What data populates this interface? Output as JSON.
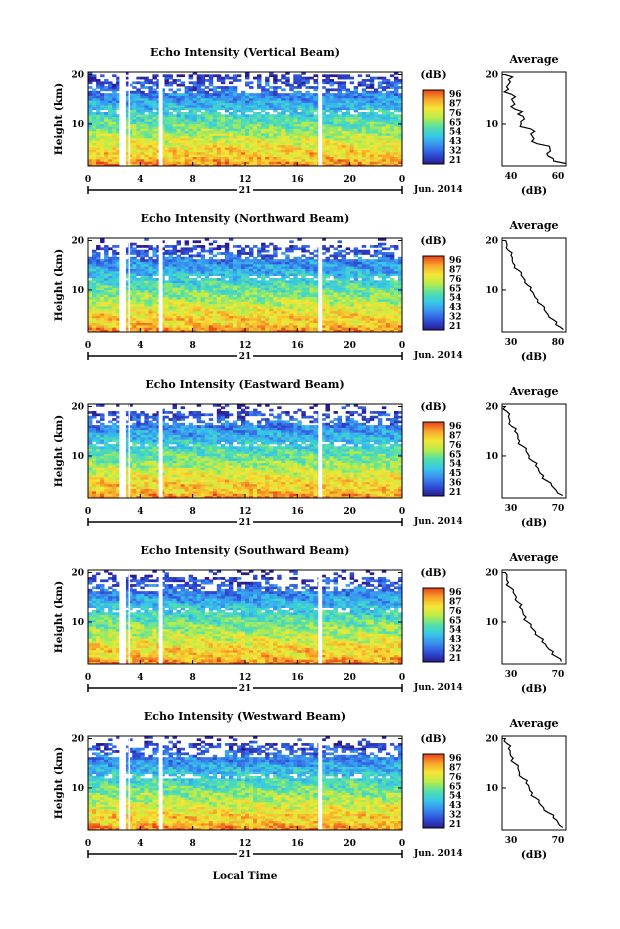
{
  "xlabel": "Local Time",
  "date_label": "Jun. 2014",
  "day_label": "21",
  "cbar_unit": "(dB)",
  "avg_title": "Average",
  "avg_xlabel": "(dB)",
  "ylabel": "Height (km)",
  "x_ticks": [
    "0",
    "4",
    "8",
    "12",
    "16",
    "20",
    "0"
  ],
  "y_ticks": [
    "20",
    "10"
  ],
  "colors": {
    "scale": [
      "#2a1a8f",
      "#2e4fd8",
      "#3a8df0",
      "#36c7e8",
      "#55e0a8",
      "#b8ec4a",
      "#f6e636",
      "#f7a52a",
      "#e8401c"
    ],
    "gap": "#ffffff"
  },
  "chart_data": [
    {
      "type": "heatmap",
      "title": "Echo Intensity (Vertical Beam)",
      "xlim": [
        0,
        24
      ],
      "ylim": [
        1.5,
        20.5
      ],
      "colorbar": {
        "unit": "(dB)",
        "ticks": [
          "96",
          "87",
          "76",
          "65",
          "54",
          "43",
          "32",
          "21"
        ]
      },
      "data_gaps_hours": [
        [
          2.4,
          2.9
        ],
        [
          3.1,
          3.2
        ],
        [
          5.4,
          5.7
        ],
        [
          17.6,
          17.9
        ]
      ],
      "average_profile": {
        "xlim": [
          40,
          60
        ],
        "xticks": [
          "40",
          "60"
        ],
        "height_km": [
          2,
          3,
          4,
          5,
          6,
          7,
          8,
          9,
          10,
          11,
          12,
          13,
          14,
          15,
          16,
          17,
          18,
          19,
          20
        ],
        "db": [
          60,
          56,
          54,
          55,
          51,
          50,
          49,
          49,
          46,
          47,
          45,
          44,
          44,
          43,
          43,
          42,
          42,
          42,
          41
        ]
      }
    },
    {
      "type": "heatmap",
      "title": "Echo Intensity (Northward Beam)",
      "xlim": [
        0,
        24
      ],
      "ylim": [
        1.5,
        20.5
      ],
      "colorbar": {
        "unit": "(dB)",
        "ticks": [
          "96",
          "87",
          "76",
          "65",
          "54",
          "43",
          "32",
          "21"
        ]
      },
      "data_gaps_hours": [
        [
          2.4,
          2.9
        ],
        [
          3.1,
          3.2
        ],
        [
          5.4,
          5.7
        ],
        [
          17.6,
          17.9
        ]
      ],
      "average_profile": {
        "xlim": [
          30,
          80
        ],
        "xticks": [
          "30",
          "80"
        ],
        "height_km": [
          2,
          3,
          4,
          5,
          6,
          7,
          8,
          9,
          10,
          11,
          12,
          13,
          14,
          15,
          16,
          17,
          18,
          19,
          20
        ],
        "db": [
          78,
          72,
          70,
          66,
          63,
          61,
          58,
          55,
          52,
          50,
          48,
          45,
          43,
          40,
          38,
          37,
          35,
          34,
          33
        ]
      }
    },
    {
      "type": "heatmap",
      "title": "Echo Intensity (Eastward Beam)",
      "xlim": [
        0,
        24
      ],
      "ylim": [
        1.5,
        20.5
      ],
      "colorbar": {
        "unit": "(dB)",
        "ticks": [
          "96",
          "87",
          "76",
          "65",
          "54",
          "45",
          "36",
          "21"
        ]
      },
      "data_gaps_hours": [
        [
          2.4,
          2.9
        ],
        [
          3.1,
          3.2
        ],
        [
          5.4,
          5.7
        ],
        [
          17.6,
          17.9
        ]
      ],
      "average_profile": {
        "xlim": [
          30,
          70
        ],
        "xticks": [
          "30",
          "70"
        ],
        "height_km": [
          2,
          3,
          4,
          5,
          6,
          7,
          8,
          9,
          10,
          11,
          12,
          13,
          14,
          15,
          16,
          17,
          18,
          19,
          20
        ],
        "db": [
          68,
          64,
          61,
          58,
          56,
          53,
          51,
          49,
          47,
          45,
          43,
          41,
          40,
          38,
          36,
          35,
          34,
          33,
          32
        ]
      }
    },
    {
      "type": "heatmap",
      "title": "Echo Intensity (Southward Beam)",
      "xlim": [
        0,
        24
      ],
      "ylim": [
        1.5,
        20.5
      ],
      "colorbar": {
        "unit": "(dB)",
        "ticks": [
          "96",
          "87",
          "76",
          "65",
          "54",
          "43",
          "32",
          "21"
        ]
      },
      "data_gaps_hours": [
        [
          2.4,
          2.9
        ],
        [
          3.1,
          3.2
        ],
        [
          5.4,
          5.7
        ],
        [
          17.6,
          17.9
        ]
      ],
      "average_profile": {
        "xlim": [
          30,
          70
        ],
        "xticks": [
          "30",
          "70"
        ],
        "height_km": [
          2,
          3,
          4,
          5,
          6,
          7,
          8,
          9,
          10,
          11,
          12,
          13,
          14,
          15,
          16,
          17,
          18,
          19,
          20
        ],
        "db": [
          67,
          64,
          62,
          58,
          55,
          53,
          51,
          48,
          46,
          45,
          43,
          41,
          40,
          39,
          37,
          35,
          34,
          33,
          32
        ]
      }
    },
    {
      "type": "heatmap",
      "title": "Echo Intensity (Westward Beam)",
      "xlim": [
        0,
        24
      ],
      "ylim": [
        1.5,
        20.5
      ],
      "colorbar": {
        "unit": "(dB)",
        "ticks": [
          "96",
          "87",
          "76",
          "65",
          "54",
          "43",
          "32",
          "21"
        ]
      },
      "data_gaps_hours": [
        [
          2.4,
          2.9
        ],
        [
          3.1,
          3.2
        ],
        [
          5.4,
          5.7
        ],
        [
          17.6,
          17.9
        ]
      ],
      "average_profile": {
        "xlim": [
          30,
          70
        ],
        "xticks": [
          "30",
          "70"
        ],
        "height_km": [
          2,
          3,
          4,
          5,
          6,
          7,
          8,
          9,
          10,
          11,
          12,
          13,
          14,
          15,
          16,
          17,
          18,
          19,
          20
        ],
        "db": [
          68,
          65,
          62,
          59,
          56,
          53,
          51,
          49,
          47,
          45,
          43,
          41,
          40,
          38,
          37,
          35,
          34,
          33,
          32
        ]
      }
    }
  ]
}
